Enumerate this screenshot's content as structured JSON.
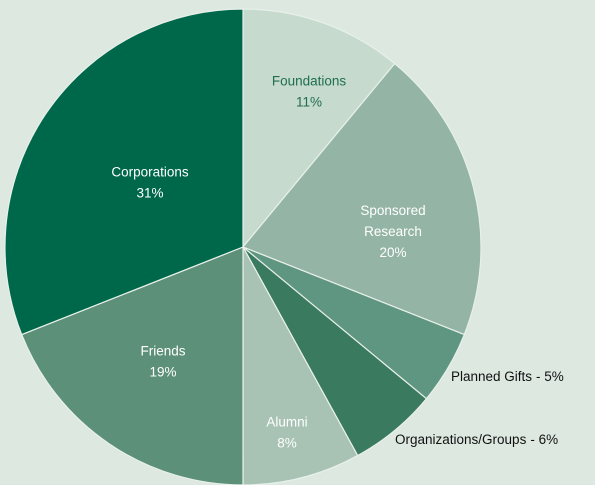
{
  "chart_data": {
    "type": "pie",
    "categories": [
      "Foundations",
      "Sponsored Research",
      "Planned Gifts",
      "Organizations/Groups",
      "Alumni",
      "Friends",
      "Corporations"
    ],
    "values": [
      11,
      20,
      5,
      6,
      8,
      19,
      31
    ],
    "value_labels": [
      "11%",
      "20%",
      "- 5%",
      "- 6%",
      "8%",
      "19%",
      "31%"
    ],
    "colors": [
      "#c6dacd",
      "#94b5a5",
      "#5f9681",
      "#3a7a5e",
      "#a8c3b4",
      "#5d9079",
      "#00684a"
    ]
  }
}
